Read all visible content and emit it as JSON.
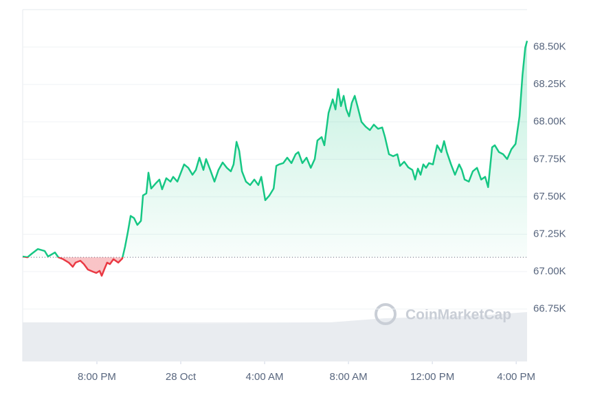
{
  "chart_data": {
    "type": "line",
    "watermark": "CoinMarketCap",
    "x": [
      -7.54,
      -7.31,
      -7.11,
      -6.82,
      -6.49,
      -6.33,
      -6.0,
      -5.84,
      -5.61,
      -5.34,
      -5.15,
      -5.02,
      -4.79,
      -4.62,
      -4.43,
      -4.2,
      -4.03,
      -3.87,
      -3.77,
      -3.64,
      -3.51,
      -3.38,
      -3.21,
      -2.98,
      -2.79,
      -2.66,
      -2.52,
      -2.39,
      -2.23,
      -2.07,
      -1.9,
      -1.8,
      -1.64,
      -1.54,
      -1.41,
      -1.21,
      -1.02,
      -0.89,
      -0.69,
      -0.49,
      -0.36,
      -0.16,
      0.16,
      0.36,
      0.56,
      0.72,
      0.89,
      1.08,
      1.21,
      1.41,
      1.61,
      1.8,
      2.0,
      2.2,
      2.39,
      2.52,
      2.66,
      2.79,
      2.92,
      3.11,
      3.31,
      3.51,
      3.7,
      3.84,
      4.03,
      4.23,
      4.43,
      4.56,
      4.69,
      4.89,
      5.08,
      5.28,
      5.48,
      5.61,
      5.8,
      6.0,
      6.2,
      6.39,
      6.52,
      6.72,
      6.85,
      7.05,
      7.25,
      7.38,
      7.51,
      7.64,
      7.77,
      7.9,
      8.03,
      8.16,
      8.3,
      8.43,
      8.62,
      8.82,
      9.02,
      9.21,
      9.41,
      9.61,
      9.74,
      9.93,
      10.13,
      10.33,
      10.46,
      10.66,
      10.85,
      11.05,
      11.18,
      11.31,
      11.44,
      11.57,
      11.7,
      11.84,
      12.03,
      12.23,
      12.43,
      12.56,
      12.69,
      12.89,
      13.08,
      13.28,
      13.41,
      13.54,
      13.74,
      13.93,
      14.13,
      14.33,
      14.52,
      14.66,
      14.85,
      14.98,
      15.18,
      15.38,
      15.57,
      15.77,
      15.97,
      16.16,
      16.3,
      16.43,
      16.52
    ],
    "series": [
      {
        "color": "#16c784",
        "negative_color": "#ea3943",
        "values": [
          67101,
          67096,
          67119,
          67151,
          67138,
          67101,
          67128,
          67096,
          67083,
          67060,
          67032,
          67060,
          67073,
          67050,
          67014,
          67000,
          66991,
          67005,
          66972,
          67018,
          67060,
          67050,
          67083,
          67060,
          67087,
          67165,
          67266,
          67372,
          67358,
          67312,
          67339,
          67509,
          67523,
          67661,
          67555,
          67587,
          67615,
          67550,
          67624,
          67601,
          67633,
          67601,
          67716,
          67693,
          67647,
          67679,
          67761,
          67679,
          67752,
          67679,
          67601,
          67679,
          67729,
          67693,
          67670,
          67716,
          67867,
          67807,
          67670,
          67601,
          67578,
          67615,
          67578,
          67633,
          67477,
          67509,
          67555,
          67706,
          67716,
          67725,
          67761,
          67725,
          67784,
          67798,
          67725,
          67761,
          67693,
          67752,
          67876,
          67899,
          67844,
          68060,
          68151,
          68083,
          68220,
          68105,
          68174,
          68083,
          68037,
          68128,
          68174,
          68105,
          68000,
          67968,
          67945,
          67982,
          67954,
          67963,
          67899,
          67784,
          67771,
          67784,
          67706,
          67734,
          67697,
          67679,
          67615,
          67688,
          67647,
          67716,
          67693,
          67725,
          67716,
          67844,
          67798,
          67872,
          67798,
          67716,
          67647,
          67716,
          67679,
          67615,
          67601,
          67670,
          67693,
          67615,
          67633,
          67564,
          67830,
          67844,
          67798,
          67784,
          67752,
          67817,
          67853,
          68037,
          68312,
          68495,
          68541
        ]
      }
    ],
    "baseline": 67096,
    "xlim": [
      -7.54,
      16.52
    ],
    "xticks": [
      {
        "value": -4,
        "label": "8:00 PM"
      },
      {
        "value": 0,
        "label": "28 Oct"
      },
      {
        "value": 4,
        "label": "4:00 AM"
      },
      {
        "value": 8,
        "label": "8:00 AM"
      },
      {
        "value": 12,
        "label": "12:00 PM"
      },
      {
        "value": 16,
        "label": "4:00 PM"
      }
    ],
    "ylim": [
      66400,
      68750
    ],
    "yticks": [
      {
        "value": 66750,
        "label": "66.75K"
      },
      {
        "value": 67000,
        "label": "67.00K"
      },
      {
        "value": 67250,
        "label": "67.25K"
      },
      {
        "value": 67500,
        "label": "67.50K"
      },
      {
        "value": 67750,
        "label": "67.75K"
      },
      {
        "value": 68000,
        "label": "68.00K"
      },
      {
        "value": 68250,
        "label": "68.25K"
      },
      {
        "value": 68500,
        "label": "68.50K"
      }
    ],
    "grid": true
  }
}
